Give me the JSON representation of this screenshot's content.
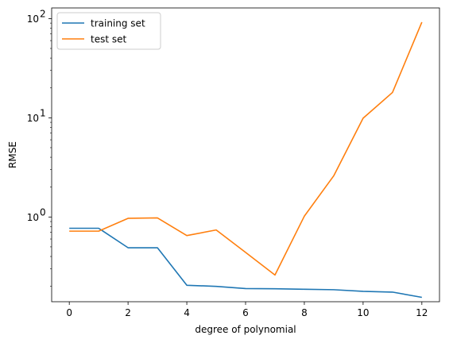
{
  "chart_data": {
    "type": "line",
    "title": "",
    "xlabel": "degree of polynomial",
    "ylabel": "RMSE",
    "yscale": "log",
    "xlim": [
      -0.6,
      12.6
    ],
    "ylim": [
      0.14,
      128
    ],
    "xticks": [
      0,
      2,
      4,
      6,
      8,
      10,
      12
    ],
    "xtick_labels": [
      "0",
      "2",
      "4",
      "6",
      "8",
      "10",
      "12"
    ],
    "yticks": [
      1,
      10,
      100
    ],
    "ytick_labels": [
      "10",
      "10",
      "10"
    ],
    "ytick_exponents": [
      "0",
      "1",
      "2"
    ],
    "grid": false,
    "legend_position": "top-left",
    "x": [
      0,
      1,
      2,
      3,
      4,
      5,
      6,
      7,
      8,
      9,
      10,
      11,
      12
    ],
    "series": [
      {
        "name": "training set",
        "color": "#1f77b4",
        "values": [
          0.77,
          0.77,
          0.49,
          0.49,
          0.205,
          0.2,
          0.19,
          0.189,
          0.187,
          0.185,
          0.178,
          0.175,
          0.155
        ]
      },
      {
        "name": "test set",
        "color": "#ff7f0e",
        "values": [
          0.72,
          0.72,
          0.97,
          0.98,
          0.65,
          0.74,
          0.44,
          0.26,
          1.02,
          2.6,
          9.9,
          18.0,
          92.0
        ]
      }
    ]
  }
}
